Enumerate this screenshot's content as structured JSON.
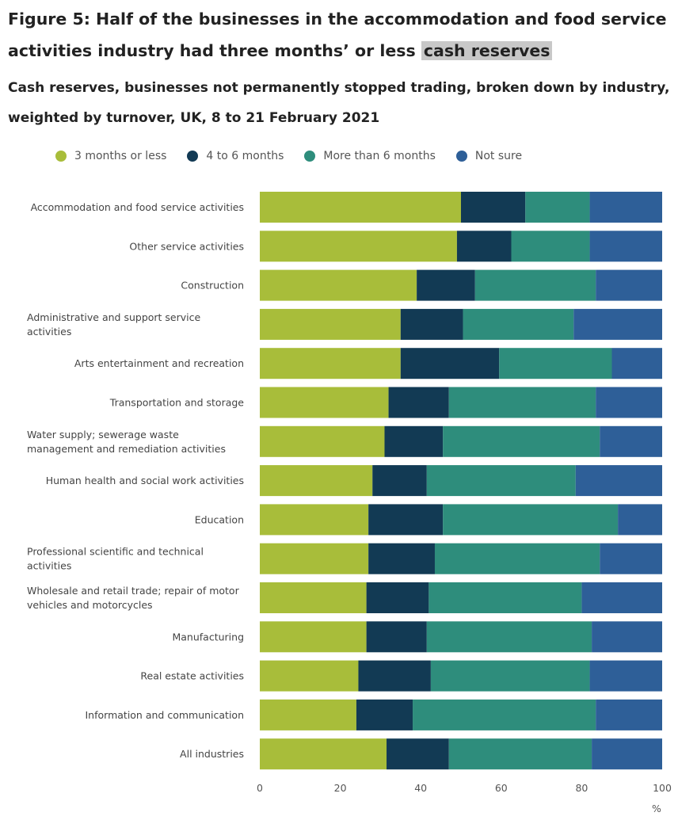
{
  "title_prefix": "Figure 5: Half of the businesses in the accommodation and food service activities industry had three months’ or less",
  "title_highlight": "cash reserves",
  "subtitle": "Cash reserves, businesses not permanently stopped trading, broken down by industry, weighted by turnover, UK, 8 to 21 February 2021",
  "chart_data": {
    "type": "bar",
    "orientation": "horizontal",
    "stacked": true,
    "unit": "%",
    "xlim": [
      0,
      100
    ],
    "x_ticks": [
      "0",
      "20",
      "40",
      "60",
      "80",
      "100"
    ],
    "legend_position": "top",
    "colors": [
      "#a8bd3a",
      "#123a54",
      "#2e8d7c",
      "#2e5f98"
    ],
    "categories": [
      [
        "Accommodation and food service activities"
      ],
      [
        "Other service activities"
      ],
      [
        "Construction"
      ],
      [
        "Administrative and support service",
        "activities"
      ],
      [
        "Arts entertainment and recreation"
      ],
      [
        "Transportation and storage"
      ],
      [
        "Water supply; sewerage waste",
        "management and remediation activities"
      ],
      [
        "Human health and social work activities"
      ],
      [
        "Education"
      ],
      [
        "Professional scientific and technical",
        "activities"
      ],
      [
        "Wholesale and retail trade; repair of motor",
        "vehicles and motorcycles"
      ],
      [
        "Manufacturing"
      ],
      [
        "Real estate activities"
      ],
      [
        "Information and communication"
      ],
      [
        "All industries"
      ]
    ],
    "series": [
      {
        "name": "3 months or less",
        "values": [
          50,
          49,
          39,
          35,
          35,
          32,
          31,
          28,
          27,
          27,
          26.5,
          26.5,
          24.5,
          24,
          31.5
        ]
      },
      {
        "name": "4 to 6 months",
        "values": [
          16,
          13.5,
          14.5,
          15.5,
          24.5,
          15,
          14.5,
          13.5,
          18.5,
          16.5,
          15.5,
          15,
          18,
          14,
          15.5
        ]
      },
      {
        "name": "More than 6 months",
        "values": [
          16,
          19.5,
          30,
          27.5,
          28,
          36.5,
          39,
          37,
          43.5,
          41,
          38,
          41,
          39.5,
          45.5,
          35.5
        ]
      },
      {
        "name": "Not sure",
        "values": [
          18,
          18,
          16.5,
          22,
          12.5,
          16.5,
          15.5,
          21.5,
          11,
          15.5,
          20,
          17.5,
          18,
          16.5,
          17.5
        ]
      }
    ]
  }
}
